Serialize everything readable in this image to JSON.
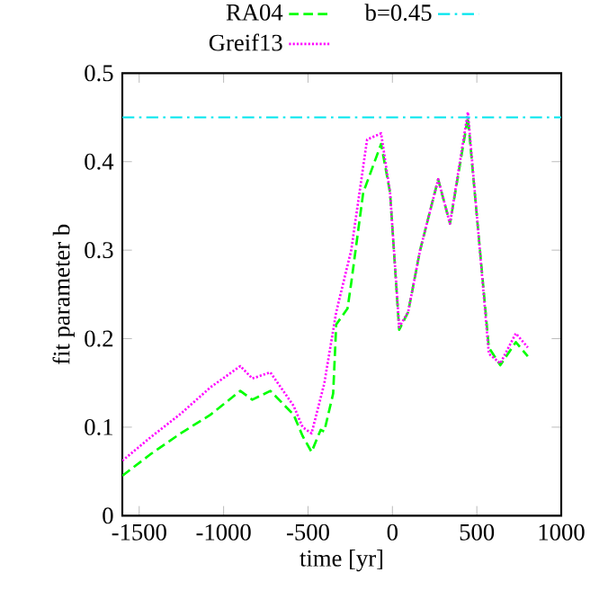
{
  "chart_data": {
    "type": "line",
    "xlabel": "time [yr]",
    "ylabel": "fit parameter b",
    "xlim": [
      -1600,
      1000
    ],
    "ylim": [
      0,
      0.5
    ],
    "xticks": [
      -1500,
      -1000,
      -500,
      0,
      500,
      1000
    ],
    "yticks": [
      0,
      0.1,
      0.2,
      0.3,
      0.4,
      0.5
    ],
    "grid": false,
    "legend": "top",
    "marker": "none",
    "series": [
      {
        "name": "RA04",
        "color": "#00ff00",
        "line_style": "dashed",
        "x": [
          -1600,
          -1436,
          -1255,
          -1078,
          -901,
          -830,
          -723,
          -585,
          -532,
          -479,
          -425,
          -404,
          -351,
          -333,
          -266,
          -244,
          -173,
          -67,
          -14,
          40,
          93,
          164,
          271,
          341,
          447,
          571,
          639,
          731,
          802
        ],
        "values": [
          0.045,
          0.069,
          0.093,
          0.114,
          0.141,
          0.131,
          0.141,
          0.114,
          0.09,
          0.072,
          0.097,
          0.095,
          0.138,
          0.216,
          0.234,
          0.263,
          0.365,
          0.42,
          0.365,
          0.21,
          0.23,
          0.3,
          0.38,
          0.33,
          0.45,
          0.19,
          0.17,
          0.196,
          0.18
        ]
      },
      {
        "name": "Greif13",
        "color": "#ff00ff",
        "line_style": "dotted",
        "x": [
          -1600,
          -1436,
          -1255,
          -1078,
          -901,
          -830,
          -723,
          -585,
          -532,
          -479,
          -404,
          -333,
          -244,
          -150,
          -67,
          -14,
          40,
          93,
          164,
          271,
          341,
          447,
          571,
          639,
          731,
          802
        ],
        "values": [
          0.062,
          0.088,
          0.115,
          0.145,
          0.169,
          0.155,
          0.162,
          0.124,
          0.1,
          0.093,
          0.149,
          0.23,
          0.3,
          0.425,
          0.432,
          0.365,
          0.213,
          0.23,
          0.3,
          0.38,
          0.33,
          0.456,
          0.183,
          0.172,
          0.206,
          0.19
        ]
      }
    ],
    "ref_lines": [
      {
        "axis": "y",
        "value": 0.45,
        "label": "b=0.45",
        "color": "#00e5ee",
        "line_style": "dashdotted"
      }
    ]
  }
}
